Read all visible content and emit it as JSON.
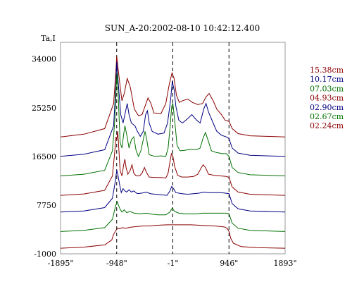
{
  "chart_data": {
    "type": "line",
    "title": "SUN_A-20:2002-08-10 10:42:12.400",
    "ylabel": "Ta,I",
    "xlabel": "",
    "xlim": [
      -1895,
      1893
    ],
    "ylim": [
      -1000,
      37000
    ],
    "x_ticks": [
      {
        "value": -1895,
        "label": "-1895\""
      },
      {
        "value": -948,
        "label": "-948\""
      },
      {
        "value": -1,
        "label": "-1\""
      },
      {
        "value": 946,
        "label": "946\""
      },
      {
        "value": 1893,
        "label": "1893\""
      }
    ],
    "y_ticks": [
      {
        "value": 34000,
        "label": "34000"
      },
      {
        "value": 25250,
        "label": "25250"
      },
      {
        "value": 16500,
        "label": "16500"
      },
      {
        "value": 7750,
        "label": "7750"
      },
      {
        "value": -1000,
        "label": "-1000"
      }
    ],
    "vlines": [
      -948,
      -1,
      946
    ],
    "grid": false,
    "legend_position": "right",
    "series": [
      {
        "name": "15.38cm",
        "color": "#8b0000",
        "offset": 20000,
        "points": [
          [
            -1895,
            0
          ],
          [
            -1500,
            500
          ],
          [
            -1150,
            1500
          ],
          [
            -1000,
            6000
          ],
          [
            -960,
            12000
          ],
          [
            -948,
            14500
          ],
          [
            -900,
            10000
          ],
          [
            -860,
            6500
          ],
          [
            -820,
            7800
          ],
          [
            -770,
            10500
          ],
          [
            -720,
            9000
          ],
          [
            -650,
            5000
          ],
          [
            -580,
            3800
          ],
          [
            -520,
            4000
          ],
          [
            -470,
            5500
          ],
          [
            -420,
            7000
          ],
          [
            -370,
            6000
          ],
          [
            -320,
            4300
          ],
          [
            -200,
            4200
          ],
          [
            -120,
            6000
          ],
          [
            -60,
            9500
          ],
          [
            -15,
            11500
          ],
          [
            20,
            10500
          ],
          [
            60,
            7500
          ],
          [
            110,
            6200
          ],
          [
            160,
            6500
          ],
          [
            250,
            6800
          ],
          [
            330,
            6200
          ],
          [
            420,
            5800
          ],
          [
            500,
            6000
          ],
          [
            560,
            7200
          ],
          [
            610,
            7800
          ],
          [
            680,
            6500
          ],
          [
            740,
            5000
          ],
          [
            820,
            4000
          ],
          [
            880,
            3000
          ],
          [
            946,
            2800
          ],
          [
            1000,
            1500
          ],
          [
            1100,
            600
          ],
          [
            1300,
            200
          ],
          [
            1893,
            0
          ]
        ]
      },
      {
        "name": "10.17cm",
        "color": "#000080",
        "offset": 16500,
        "points": [
          [
            -1895,
            0
          ],
          [
            -1500,
            400
          ],
          [
            -1150,
            1200
          ],
          [
            -1000,
            5500
          ],
          [
            -960,
            13000
          ],
          [
            -948,
            17000
          ],
          [
            -920,
            13000
          ],
          [
            -880,
            7500
          ],
          [
            -840,
            6000
          ],
          [
            -800,
            8000
          ],
          [
            -770,
            9500
          ],
          [
            -740,
            7500
          ],
          [
            -700,
            6000
          ],
          [
            -640,
            5500
          ],
          [
            -600,
            4500
          ],
          [
            -550,
            3600
          ],
          [
            -500,
            4500
          ],
          [
            -460,
            7500
          ],
          [
            -430,
            8200
          ],
          [
            -400,
            6000
          ],
          [
            -350,
            4500
          ],
          [
            -250,
            4000
          ],
          [
            -150,
            4200
          ],
          [
            -90,
            6000
          ],
          [
            -40,
            10000
          ],
          [
            -10,
            13500
          ],
          [
            20,
            12000
          ],
          [
            50,
            9000
          ],
          [
            100,
            6500
          ],
          [
            160,
            6000
          ],
          [
            250,
            6800
          ],
          [
            320,
            7500
          ],
          [
            400,
            6500
          ],
          [
            460,
            6000
          ],
          [
            520,
            8500
          ],
          [
            560,
            9500
          ],
          [
            600,
            8000
          ],
          [
            680,
            6000
          ],
          [
            740,
            4500
          ],
          [
            820,
            3800
          ],
          [
            900,
            3500
          ],
          [
            946,
            3200
          ],
          [
            1000,
            1500
          ],
          [
            1100,
            600
          ],
          [
            1300,
            200
          ],
          [
            1893,
            0
          ]
        ]
      },
      {
        "name": "07.03cm",
        "color": "#007000",
        "offset": 13000,
        "points": [
          [
            -1895,
            0
          ],
          [
            -1500,
            300
          ],
          [
            -1150,
            1000
          ],
          [
            -1020,
            4500
          ],
          [
            -980,
            10000
          ],
          [
            -955,
            16500
          ],
          [
            -940,
            18500
          ],
          [
            -920,
            14000
          ],
          [
            -890,
            6000
          ],
          [
            -860,
            5000
          ],
          [
            -830,
            7500
          ],
          [
            -810,
            9000
          ],
          [
            -780,
            7500
          ],
          [
            -740,
            5000
          ],
          [
            -700,
            6500
          ],
          [
            -660,
            7000
          ],
          [
            -620,
            4500
          ],
          [
            -580,
            3500
          ],
          [
            -540,
            4500
          ],
          [
            -500,
            6500
          ],
          [
            -470,
            8000
          ],
          [
            -440,
            6500
          ],
          [
            -400,
            3800
          ],
          [
            -300,
            3500
          ],
          [
            -200,
            3600
          ],
          [
            -120,
            3500
          ],
          [
            -80,
            5000
          ],
          [
            -50,
            8500
          ],
          [
            -20,
            12500
          ],
          [
            0,
            13000
          ],
          [
            30,
            10000
          ],
          [
            70,
            5500
          ],
          [
            120,
            4500
          ],
          [
            200,
            4600
          ],
          [
            300,
            4800
          ],
          [
            400,
            4700
          ],
          [
            460,
            5000
          ],
          [
            510,
            6800
          ],
          [
            550,
            7800
          ],
          [
            590,
            6500
          ],
          [
            650,
            4500
          ],
          [
            730,
            4200
          ],
          [
            830,
            4000
          ],
          [
            900,
            4000
          ],
          [
            946,
            3500
          ],
          [
            1000,
            1500
          ],
          [
            1100,
            600
          ],
          [
            1300,
            200
          ],
          [
            1893,
            0
          ]
        ]
      },
      {
        "name": "04.93cm",
        "color": "#8b0000",
        "offset": 9500,
        "points": [
          [
            -1895,
            0
          ],
          [
            -1500,
            250
          ],
          [
            -1150,
            900
          ],
          [
            -1020,
            3500
          ],
          [
            -980,
            8000
          ],
          [
            -960,
            10500
          ],
          [
            -945,
            10000
          ],
          [
            -930,
            11500
          ],
          [
            -915,
            9000
          ],
          [
            -890,
            4500
          ],
          [
            -860,
            3500
          ],
          [
            -830,
            5500
          ],
          [
            -810,
            6500
          ],
          [
            -790,
            5000
          ],
          [
            -760,
            3800
          ],
          [
            -720,
            4500
          ],
          [
            -690,
            5500
          ],
          [
            -660,
            4000
          ],
          [
            -620,
            3500
          ],
          [
            -560,
            3500
          ],
          [
            -520,
            4000
          ],
          [
            -480,
            5000
          ],
          [
            -450,
            4200
          ],
          [
            -400,
            3300
          ],
          [
            -300,
            3200
          ],
          [
            -200,
            3200
          ],
          [
            -120,
            3100
          ],
          [
            -80,
            4000
          ],
          [
            -50,
            6000
          ],
          [
            -25,
            7500
          ],
          [
            0,
            7000
          ],
          [
            30,
            5200
          ],
          [
            80,
            3600
          ],
          [
            150,
            3300
          ],
          [
            250,
            3300
          ],
          [
            350,
            3400
          ],
          [
            420,
            3800
          ],
          [
            470,
            4800
          ],
          [
            510,
            5500
          ],
          [
            550,
            5000
          ],
          [
            600,
            3800
          ],
          [
            700,
            3600
          ],
          [
            800,
            3500
          ],
          [
            900,
            3400
          ],
          [
            946,
            3200
          ],
          [
            1000,
            1500
          ],
          [
            1100,
            600
          ],
          [
            1300,
            200
          ],
          [
            1893,
            0
          ]
        ]
      },
      {
        "name": "02.90cm",
        "color": "#000080",
        "offset": 6500,
        "points": [
          [
            -1895,
            0
          ],
          [
            -1500,
            200
          ],
          [
            -1150,
            800
          ],
          [
            -1020,
            2500
          ],
          [
            -980,
            5000
          ],
          [
            -960,
            6500
          ],
          [
            -945,
            7500
          ],
          [
            -925,
            6500
          ],
          [
            -900,
            5000
          ],
          [
            -870,
            3500
          ],
          [
            -840,
            4200
          ],
          [
            -810,
            3800
          ],
          [
            -780,
            3600
          ],
          [
            -740,
            4000
          ],
          [
            -700,
            3600
          ],
          [
            -660,
            3800
          ],
          [
            -600,
            3300
          ],
          [
            -520,
            3400
          ],
          [
            -450,
            3600
          ],
          [
            -380,
            3300
          ],
          [
            -300,
            3200
          ],
          [
            -200,
            3100
          ],
          [
            -100,
            3000
          ],
          [
            -50,
            3800
          ],
          [
            -20,
            4600
          ],
          [
            10,
            4200
          ],
          [
            50,
            3500
          ],
          [
            150,
            3300
          ],
          [
            250,
            3200
          ],
          [
            350,
            3300
          ],
          [
            450,
            3400
          ],
          [
            520,
            3600
          ],
          [
            600,
            3500
          ],
          [
            700,
            3500
          ],
          [
            800,
            3500
          ],
          [
            880,
            3400
          ],
          [
            946,
            3300
          ],
          [
            1000,
            1500
          ],
          [
            1100,
            600
          ],
          [
            1300,
            200
          ],
          [
            1893,
            0
          ]
        ]
      },
      {
        "name": "02.67cm",
        "color": "#007000",
        "offset": 3000,
        "points": [
          [
            -1895,
            0
          ],
          [
            -1500,
            200
          ],
          [
            -1150,
            700
          ],
          [
            -1020,
            2200
          ],
          [
            -980,
            4000
          ],
          [
            -960,
            4800
          ],
          [
            -940,
            5400
          ],
          [
            -920,
            4800
          ],
          [
            -890,
            4000
          ],
          [
            -860,
            3500
          ],
          [
            -820,
            3900
          ],
          [
            -780,
            3400
          ],
          [
            -720,
            3600
          ],
          [
            -650,
            3300
          ],
          [
            -550,
            3200
          ],
          [
            -450,
            3300
          ],
          [
            -350,
            3100
          ],
          [
            -250,
            3000
          ],
          [
            -120,
            3000
          ],
          [
            -50,
            3500
          ],
          [
            -10,
            4200
          ],
          [
            30,
            3600
          ],
          [
            100,
            3300
          ],
          [
            200,
            3200
          ],
          [
            300,
            3200
          ],
          [
            400,
            3200
          ],
          [
            500,
            3300
          ],
          [
            600,
            3300
          ],
          [
            700,
            3300
          ],
          [
            800,
            3300
          ],
          [
            900,
            3300
          ],
          [
            946,
            3200
          ],
          [
            1000,
            1500
          ],
          [
            1100,
            600
          ],
          [
            1300,
            200
          ],
          [
            1893,
            0
          ]
        ]
      },
      {
        "name": "02.24cm",
        "color": "#8b0000",
        "offset": 0,
        "points": [
          [
            -1895,
            0
          ],
          [
            -1500,
            200
          ],
          [
            -1150,
            600
          ],
          [
            -1030,
            1500
          ],
          [
            -1000,
            2500
          ],
          [
            -960,
            3200
          ],
          [
            -930,
            3600
          ],
          [
            -900,
            3500
          ],
          [
            -850,
            3700
          ],
          [
            -800,
            3600
          ],
          [
            -700,
            3800
          ],
          [
            -600,
            3900
          ],
          [
            -500,
            4000
          ],
          [
            -400,
            4000
          ],
          [
            -300,
            4100
          ],
          [
            -200,
            4150
          ],
          [
            -100,
            4200
          ],
          [
            0,
            4200
          ],
          [
            100,
            4200
          ],
          [
            200,
            4200
          ],
          [
            300,
            4200
          ],
          [
            400,
            4150
          ],
          [
            500,
            4100
          ],
          [
            600,
            4050
          ],
          [
            700,
            4000
          ],
          [
            800,
            3900
          ],
          [
            880,
            3800
          ],
          [
            920,
            3500
          ],
          [
            946,
            3000
          ],
          [
            975,
            1800
          ],
          [
            1020,
            900
          ],
          [
            1150,
            300
          ],
          [
            1400,
            100
          ],
          [
            1893,
            0
          ]
        ]
      }
    ]
  }
}
